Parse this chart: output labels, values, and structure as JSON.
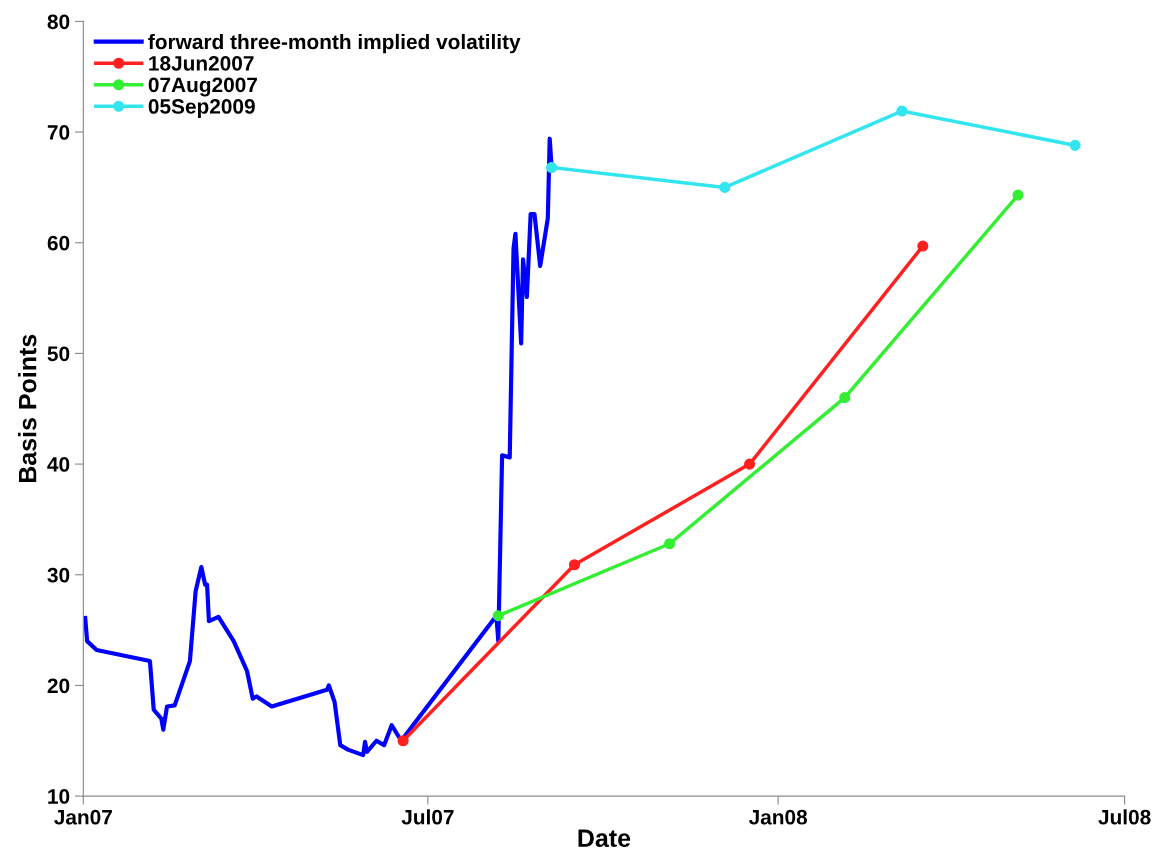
{
  "chart_data": {
    "type": "line",
    "xlabel": "Date",
    "ylabel": "Basis Points",
    "xlim": [
      "2007-01-01",
      "2008-07-01"
    ],
    "xticks": [
      {
        "value": "2007-01-01",
        "label": "Jan07"
      },
      {
        "value": "2007-07-01",
        "label": "Jul07"
      },
      {
        "value": "2008-01-01",
        "label": "Jan08"
      },
      {
        "value": "2008-07-01",
        "label": "Jul08"
      }
    ],
    "ylim": [
      10,
      80
    ],
    "yticks": [
      10,
      20,
      30,
      40,
      50,
      60,
      70,
      80
    ],
    "grid": false,
    "legend": "top left",
    "line_style": "solid",
    "series": [
      {
        "name": "forward three-month implied volatility",
        "color": "#0000ff",
        "marker": "none",
        "x": [
          "2007-01-02",
          "2007-01-03",
          "2007-01-08",
          "2007-02-05",
          "2007-02-07",
          "2007-02-11",
          "2007-02-12",
          "2007-02-14",
          "2007-02-18",
          "2007-02-26",
          "2007-03-01",
          "2007-03-04",
          "2007-03-06",
          "2007-03-07",
          "2007-03-08",
          "2007-03-13",
          "2007-03-21",
          "2007-03-28",
          "2007-03-31",
          "2007-04-02",
          "2007-04-10",
          "2007-05-09",
          "2007-05-10",
          "2007-05-13",
          "2007-05-16",
          "2007-05-20",
          "2007-05-28",
          "2007-05-29",
          "2007-05-30",
          "2007-06-04",
          "2007-06-08",
          "2007-06-12",
          "2007-06-17",
          "2007-08-06",
          "2007-08-07",
          "2007-08-09",
          "2007-08-13",
          "2007-08-15",
          "2007-08-16",
          "2007-08-19",
          "2007-08-20",
          "2007-08-22",
          "2007-08-24",
          "2007-08-26",
          "2007-08-29",
          "2007-09-02",
          "2007-09-03",
          "2007-09-04"
        ],
        "values": [
          26.1,
          24.0,
          23.2,
          22.2,
          17.8,
          17.0,
          16.0,
          18.1,
          18.2,
          22.2,
          28.5,
          30.7,
          29.1,
          29.1,
          25.8,
          26.2,
          24.0,
          21.3,
          18.8,
          19.0,
          18.1,
          19.6,
          20.0,
          18.5,
          14.6,
          14.2,
          13.7,
          14.9,
          14.0,
          15.0,
          14.6,
          16.4,
          15.0,
          26.3,
          24.0,
          40.8,
          40.6,
          59.5,
          60.8,
          50.9,
          58.5,
          55.1,
          62.6,
          62.6,
          57.9,
          62.2,
          69.4,
          66.8
        ]
      },
      {
        "name": "18Jun2007",
        "color": "#ff2020",
        "marker": "circle",
        "x": [
          "2007-06-18",
          "2007-09-16",
          "2007-12-17",
          "2008-03-17"
        ],
        "values": [
          15.0,
          30.9,
          40.0,
          59.7
        ]
      },
      {
        "name": "07Aug2007",
        "color": "#33ee33",
        "marker": "circle",
        "x": [
          "2007-08-07",
          "2007-11-05",
          "2008-02-05",
          "2008-05-06"
        ],
        "values": [
          26.3,
          32.8,
          46.0,
          64.3
        ]
      },
      {
        "name": "05Sep2009",
        "color": "#33e5ee",
        "marker": "circle",
        "x": [
          "2007-09-04",
          "2007-12-04",
          "2008-03-06",
          "2008-06-05"
        ],
        "values": [
          66.8,
          65.0,
          71.9,
          68.8
        ]
      }
    ]
  }
}
